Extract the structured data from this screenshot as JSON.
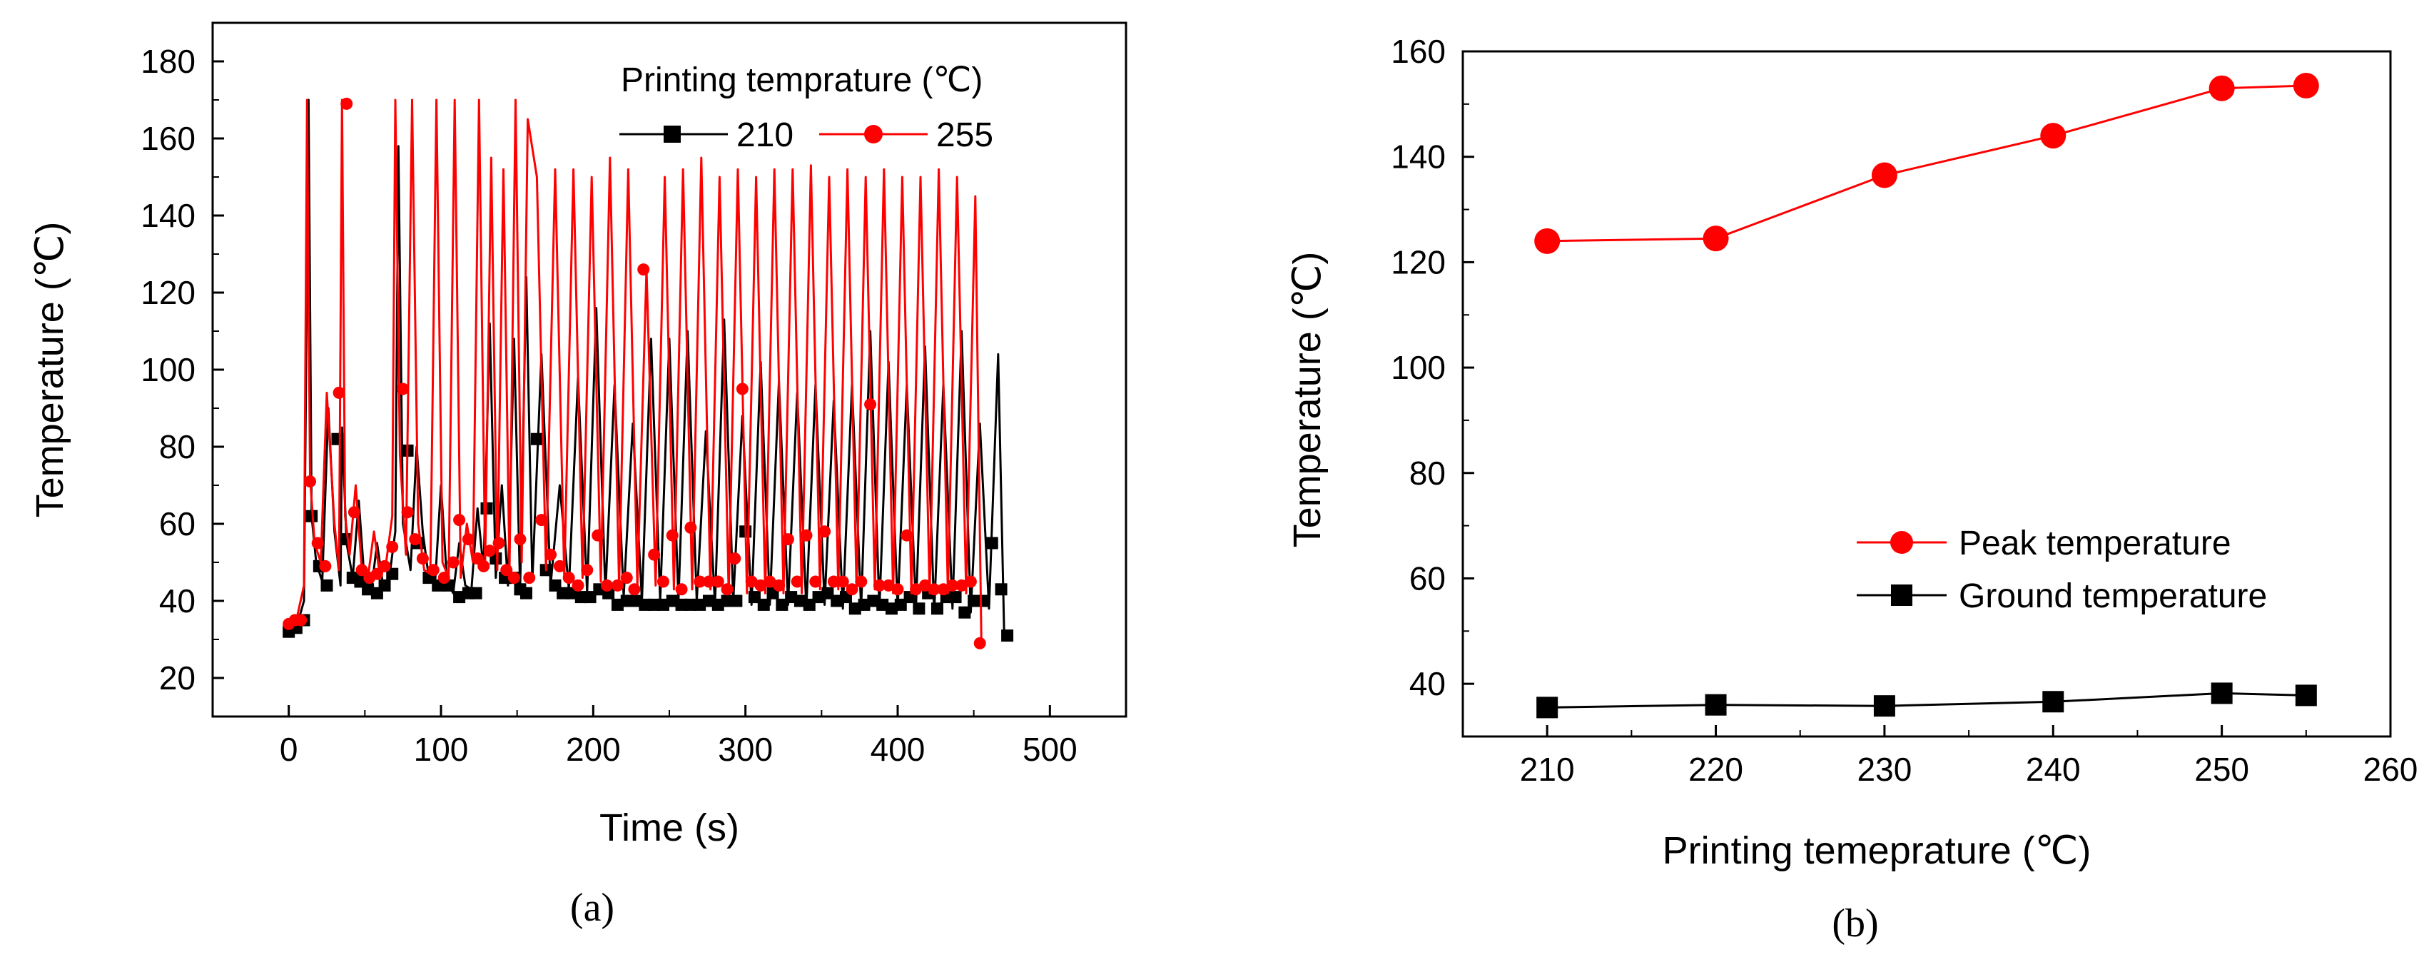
{
  "chart_data": [
    {
      "type": "line",
      "panel_label": "(a)",
      "xlabel": "Time (s)",
      "ylabel": "Temperature (℃)",
      "xlim": [
        -50,
        550
      ],
      "ylim": [
        10,
        190
      ],
      "xticks": [
        0,
        100,
        200,
        300,
        400,
        500
      ],
      "yticks": [
        20,
        40,
        60,
        80,
        100,
        120,
        140,
        160,
        180
      ],
      "legend_title": "Printing temprature (℃)",
      "legend_position": "top-right",
      "series": [
        {
          "name": "210",
          "color": "#000000",
          "marker": "square",
          "x": [
            0,
            5,
            10,
            13,
            15,
            18,
            22,
            26,
            30,
            34,
            35,
            38,
            42,
            46,
            50,
            54,
            58,
            62,
            66,
            70,
            72,
            75,
            80,
            84,
            88,
            92,
            96,
            100,
            104,
            108,
            112,
            116,
            120,
            124,
            128,
            132,
            136,
            140,
            144,
            148,
            152,
            156,
            160,
            166,
            172,
            178,
            184,
            190,
            196,
            202,
            208,
            214,
            220,
            226,
            232,
            238,
            244,
            250,
            256,
            262,
            268,
            274,
            280,
            286,
            292,
            298,
            304,
            310,
            316,
            322,
            328,
            334,
            340,
            346,
            352,
            358,
            364,
            370,
            376,
            382,
            388,
            394,
            400,
            406,
            412,
            418,
            424,
            430,
            436,
            442,
            448,
            454,
            460,
            466,
            470
          ],
          "y": [
            32,
            33,
            40,
            170,
            62,
            50,
            45,
            90,
            58,
            44,
            85,
            55,
            46,
            66,
            44,
            42,
            55,
            44,
            46,
            58,
            158,
            60,
            48,
            80,
            58,
            46,
            44,
            70,
            45,
            42,
            55,
            44,
            43,
            64,
            48,
            112,
            46,
            70,
            44,
            108,
            43,
            124,
            45,
            104,
            44,
            70,
            43,
            98,
            42,
            116,
            42,
            96,
            41,
            86,
            40,
            108,
            40,
            108,
            40,
            110,
            40,
            84,
            39,
            113,
            40,
            88,
            39,
            102,
            39,
            97,
            39,
            94,
            38,
            96,
            39,
            92,
            38,
            96,
            38,
            110,
            38,
            102,
            38,
            96,
            38,
            106,
            37,
            96,
            38,
            110,
            37,
            86,
            38,
            104,
            31
          ],
          "marker_points": [
            [
              0,
              32
            ],
            [
              5,
              33
            ],
            [
              10,
              35
            ],
            [
              15,
              62
            ],
            [
              20,
              49
            ],
            [
              25,
              44
            ],
            [
              32,
              82
            ],
            [
              37,
              56
            ],
            [
              42,
              46
            ],
            [
              47,
              45
            ],
            [
              52,
              43
            ],
            [
              58,
              42
            ],
            [
              63,
              44
            ],
            [
              68,
              47
            ],
            [
              78,
              79
            ],
            [
              85,
              55
            ],
            [
              92,
              46
            ],
            [
              98,
              44
            ],
            [
              105,
              44
            ],
            [
              112,
              41
            ],
            [
              118,
              42
            ],
            [
              123,
              42
            ],
            [
              130,
              64
            ],
            [
              136,
              51
            ],
            [
              142,
              46
            ],
            [
              148,
              46
            ],
            [
              152,
              43
            ],
            [
              156,
              42
            ],
            [
              163,
              82
            ],
            [
              169,
              48
            ],
            [
              175,
              44
            ],
            [
              180,
              42
            ],
            [
              186,
              42
            ],
            [
              192,
              41
            ],
            [
              198,
              41
            ],
            [
              204,
              43
            ],
            [
              210,
              42
            ],
            [
              216,
              39
            ],
            [
              222,
              40
            ],
            [
              228,
              40
            ],
            [
              234,
              39
            ],
            [
              240,
              39
            ],
            [
              246,
              39
            ],
            [
              252,
              40
            ],
            [
              258,
              39
            ],
            [
              264,
              39
            ],
            [
              270,
              39
            ],
            [
              276,
              40
            ],
            [
              282,
              39
            ],
            [
              288,
              40
            ],
            [
              294,
              40
            ],
            [
              300,
              58
            ],
            [
              306,
              41
            ],
            [
              312,
              39
            ],
            [
              318,
              42
            ],
            [
              324,
              39
            ],
            [
              330,
              41
            ],
            [
              336,
              40
            ],
            [
              342,
              39
            ],
            [
              348,
              41
            ],
            [
              354,
              42
            ],
            [
              360,
              40
            ],
            [
              366,
              41
            ],
            [
              372,
              38
            ],
            [
              378,
              39
            ],
            [
              384,
              40
            ],
            [
              390,
              39
            ],
            [
              396,
              38
            ],
            [
              402,
              39
            ],
            [
              408,
              41
            ],
            [
              414,
              38
            ],
            [
              420,
              42
            ],
            [
              426,
              38
            ],
            [
              432,
              41
            ],
            [
              438,
              41
            ],
            [
              444,
              37
            ],
            [
              450,
              40
            ],
            [
              456,
              40
            ],
            [
              462,
              55
            ],
            [
              468,
              43
            ],
            [
              472,
              31
            ]
          ]
        },
        {
          "name": "255",
          "color": "#ff0000",
          "marker": "circle",
          "x": [
            0,
            5,
            10,
            12,
            14,
            17,
            21,
            25,
            30,
            33,
            35,
            37,
            40,
            44,
            48,
            52,
            56,
            60,
            64,
            68,
            70,
            73,
            77,
            81,
            85,
            89,
            93,
            97,
            101,
            105,
            109,
            113,
            117,
            121,
            125,
            129,
            133,
            137,
            141,
            145,
            149,
            153,
            157,
            163,
            169,
            175,
            181,
            187,
            193,
            199,
            205,
            211,
            217,
            223,
            229,
            235,
            241,
            247,
            253,
            259,
            265,
            271,
            277,
            283,
            289,
            295,
            301,
            307,
            313,
            319,
            325,
            331,
            337,
            343,
            349,
            355,
            361,
            367,
            373,
            379,
            385,
            391,
            397,
            403,
            409,
            415,
            421,
            427,
            433,
            439,
            445,
            451,
            455
          ],
          "y": [
            34,
            35,
            44,
            170,
            72,
            55,
            50,
            94,
            60,
            48,
            170,
            62,
            52,
            70,
            48,
            46,
            58,
            46,
            50,
            62,
            170,
            78,
            52,
            170,
            60,
            48,
            47,
            170,
            50,
            46,
            170,
            46,
            60,
            50,
            170,
            50,
            155,
            48,
            152,
            48,
            170,
            50,
            165,
            150,
            48,
            152,
            46,
            152,
            46,
            150,
            45,
            155,
            44,
            152,
            44,
            126,
            44,
            150,
            43,
            152,
            43,
            155,
            43,
            150,
            42,
            152,
            42,
            150,
            42,
            152,
            42,
            152,
            42,
            153,
            43,
            150,
            43,
            152,
            43,
            150,
            43,
            152,
            42,
            150,
            42,
            150,
            42,
            152,
            42,
            150,
            42,
            145,
            29
          ],
          "marker_points": [
            [
              0,
              34
            ],
            [
              4,
              35
            ],
            [
              8,
              35
            ],
            [
              14,
              71
            ],
            [
              19,
              55
            ],
            [
              24,
              49
            ],
            [
              33,
              94
            ],
            [
              38,
              169
            ],
            [
              43,
              63
            ],
            [
              48,
              48
            ],
            [
              53,
              46
            ],
            [
              58,
              47
            ],
            [
              63,
              49
            ],
            [
              68,
              54
            ],
            [
              75,
              95
            ],
            [
              78,
              63
            ],
            [
              83,
              56
            ],
            [
              88,
              51
            ],
            [
              95,
              48
            ],
            [
              102,
              46
            ],
            [
              108,
              50
            ],
            [
              112,
              61
            ],
            [
              118,
              56
            ],
            [
              124,
              51
            ],
            [
              128,
              49
            ],
            [
              132,
              53
            ],
            [
              138,
              55
            ],
            [
              143,
              48
            ],
            [
              148,
              46
            ],
            [
              152,
              56
            ],
            [
              158,
              46
            ],
            [
              166,
              61
            ],
            [
              172,
              52
            ],
            [
              178,
              49
            ],
            [
              184,
              46
            ],
            [
              190,
              44
            ],
            [
              196,
              48
            ],
            [
              203,
              57
            ],
            [
              209,
              44
            ],
            [
              216,
              44
            ],
            [
              222,
              46
            ],
            [
              227,
              43
            ],
            [
              233,
              126
            ],
            [
              240,
              52
            ],
            [
              246,
              45
            ],
            [
              252,
              57
            ],
            [
              258,
              43
            ],
            [
              264,
              59
            ],
            [
              270,
              45
            ],
            [
              276,
              45
            ],
            [
              282,
              45
            ],
            [
              288,
              43
            ],
            [
              293,
              51
            ],
            [
              298,
              95
            ],
            [
              304,
              45
            ],
            [
              310,
              44
            ],
            [
              316,
              45
            ],
            [
              322,
              44
            ],
            [
              328,
              56
            ],
            [
              334,
              45
            ],
            [
              340,
              57
            ],
            [
              346,
              45
            ],
            [
              352,
              58
            ],
            [
              358,
              45
            ],
            [
              364,
              45
            ],
            [
              370,
              43
            ],
            [
              376,
              45
            ],
            [
              382,
              91
            ],
            [
              388,
              44
            ],
            [
              394,
              44
            ],
            [
              400,
              43
            ],
            [
              406,
              57
            ],
            [
              412,
              43
            ],
            [
              418,
              44
            ],
            [
              424,
              43
            ],
            [
              430,
              43
            ],
            [
              436,
              44
            ],
            [
              442,
              44
            ],
            [
              448,
              45
            ],
            [
              454,
              29
            ]
          ]
        }
      ]
    },
    {
      "type": "line",
      "panel_label": "(b)",
      "xlabel": "Printing temeprature (℃)",
      "ylabel": "Temperature (℃)",
      "xlim": [
        205,
        260
      ],
      "ylim": [
        30,
        160
      ],
      "xticks": [
        210,
        220,
        230,
        240,
        250,
        260
      ],
      "yticks": [
        40,
        60,
        80,
        100,
        120,
        140,
        160
      ],
      "legend_position": "bottom-right",
      "series": [
        {
          "name": "Peak temperature",
          "color": "#ff0000",
          "marker": "circle",
          "x": [
            210,
            220,
            230,
            240,
            250,
            255
          ],
          "y": [
            124,
            124.5,
            136.5,
            144,
            153,
            153.5
          ]
        },
        {
          "name": "Ground temperature",
          "color": "#000000",
          "marker": "square",
          "x": [
            210,
            220,
            230,
            240,
            250,
            255
          ],
          "y": [
            35.5,
            36,
            35.8,
            36.6,
            38.2,
            37.8
          ]
        }
      ]
    }
  ]
}
